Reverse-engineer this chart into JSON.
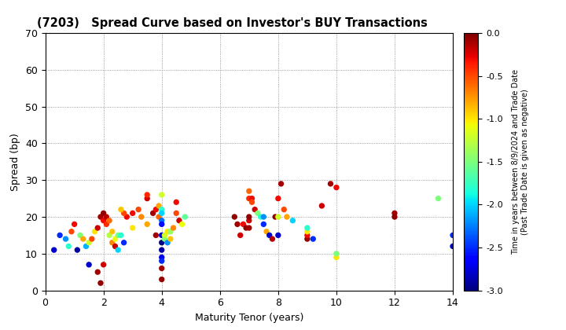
{
  "title": "(7203)   Spread Curve based on Investor's BUY Transactions",
  "xlabel": "Maturity Tenor (years)",
  "ylabel": "Spread (bp)",
  "colorbar_label": "Time in years between 8/9/2024 and Trade Date\n(Past Trade Date is given as negative)",
  "xlim": [
    0,
    14
  ],
  "ylim": [
    0,
    70
  ],
  "xticks": [
    0,
    2,
    4,
    6,
    8,
    10,
    12,
    14
  ],
  "yticks": [
    0,
    10,
    20,
    30,
    40,
    50,
    60,
    70
  ],
  "cmap_min": -3.0,
  "cmap_max": 0.0,
  "points": [
    [
      0.3,
      11,
      -2.8
    ],
    [
      0.5,
      15,
      -2.5
    ],
    [
      0.7,
      14,
      -2.2
    ],
    [
      0.8,
      12,
      -1.8
    ],
    [
      0.9,
      16,
      -0.5
    ],
    [
      1.0,
      18,
      -0.3
    ],
    [
      1.1,
      11,
      -2.9
    ],
    [
      1.2,
      15,
      -1.5
    ],
    [
      1.3,
      14,
      -0.8
    ],
    [
      1.4,
      12,
      -2.1
    ],
    [
      1.5,
      13,
      -1.2
    ],
    [
      1.6,
      14,
      -0.5
    ],
    [
      1.7,
      16,
      -1.0
    ],
    [
      1.8,
      17,
      -0.2
    ],
    [
      1.9,
      20,
      -0.1
    ],
    [
      2.0,
      21,
      -0.05
    ],
    [
      2.0,
      19,
      -0.3
    ],
    [
      2.1,
      18,
      -0.4
    ],
    [
      2.1,
      20,
      -0.15
    ],
    [
      2.2,
      19,
      -0.6
    ],
    [
      2.2,
      15,
      -1.3
    ],
    [
      2.3,
      13,
      -0.7
    ],
    [
      2.3,
      16,
      -0.9
    ],
    [
      2.4,
      12,
      -0.2
    ],
    [
      2.4,
      14,
      -1.1
    ],
    [
      2.5,
      15,
      -1.5
    ],
    [
      2.5,
      11,
      -2.0
    ],
    [
      1.8,
      5,
      -0.1
    ],
    [
      1.9,
      2,
      -0.05
    ],
    [
      2.0,
      7,
      -0.2
    ],
    [
      1.5,
      7,
      -2.8
    ],
    [
      3.0,
      21,
      -0.3
    ],
    [
      3.2,
      22,
      -0.5
    ],
    [
      3.5,
      25,
      -0.2
    ],
    [
      3.5,
      26,
      -0.4
    ],
    [
      3.7,
      21,
      -0.1
    ],
    [
      3.8,
      22,
      -0.3
    ],
    [
      3.9,
      20,
      -0.6
    ],
    [
      3.9,
      23,
      -0.8
    ],
    [
      4.0,
      26,
      -1.2
    ],
    [
      4.0,
      22,
      -1.8
    ],
    [
      4.0,
      21,
      -2.0
    ],
    [
      4.0,
      19,
      -2.3
    ],
    [
      4.0,
      18,
      -2.6
    ],
    [
      4.0,
      15,
      -2.8
    ],
    [
      4.0,
      13,
      -3.0
    ],
    [
      4.0,
      11,
      -2.9
    ],
    [
      4.0,
      9,
      -2.7
    ],
    [
      4.0,
      8,
      -2.5
    ],
    [
      4.0,
      6,
      -0.1
    ],
    [
      4.0,
      3,
      -0.05
    ],
    [
      4.1,
      14,
      -1.5
    ],
    [
      4.1,
      15,
      -1.2
    ],
    [
      4.2,
      16,
      -1.0
    ],
    [
      4.2,
      13,
      -2.2
    ],
    [
      4.3,
      14,
      -0.9
    ],
    [
      4.3,
      16,
      -1.4
    ],
    [
      4.4,
      17,
      -0.7
    ],
    [
      4.5,
      24,
      -0.3
    ],
    [
      4.5,
      21,
      -0.5
    ],
    [
      4.6,
      19,
      -0.2
    ],
    [
      4.7,
      18,
      -1.1
    ],
    [
      4.8,
      20,
      -1.6
    ],
    [
      3.8,
      15,
      -0.1
    ],
    [
      3.5,
      18,
      -0.8
    ],
    [
      3.3,
      20,
      -0.7
    ],
    [
      3.0,
      17,
      -1.0
    ],
    [
      2.8,
      20,
      -0.3
    ],
    [
      2.7,
      21,
      -0.5
    ],
    [
      2.6,
      22,
      -0.9
    ],
    [
      2.6,
      15,
      -1.8
    ],
    [
      2.7,
      13,
      -2.5
    ],
    [
      6.5,
      20,
      -0.05
    ],
    [
      6.6,
      18,
      -0.1
    ],
    [
      6.7,
      15,
      -0.2
    ],
    [
      6.8,
      18,
      -0.3
    ],
    [
      6.9,
      17,
      -0.05
    ],
    [
      7.0,
      17,
      -0.1
    ],
    [
      7.0,
      19,
      -0.2
    ],
    [
      7.0,
      20,
      -0.05
    ],
    [
      7.0,
      25,
      -0.4
    ],
    [
      7.0,
      27,
      -0.6
    ],
    [
      7.1,
      25,
      -0.3
    ],
    [
      7.1,
      24,
      -0.5
    ],
    [
      7.2,
      22,
      -0.2
    ],
    [
      7.3,
      21,
      -1.5
    ],
    [
      7.4,
      20,
      -1.8
    ],
    [
      7.5,
      20,
      -2.2
    ],
    [
      7.5,
      18,
      -2.5
    ],
    [
      7.6,
      16,
      -0.8
    ],
    [
      7.7,
      15,
      -2.8
    ],
    [
      7.8,
      14,
      -0.15
    ],
    [
      7.9,
      20,
      -0.05
    ],
    [
      8.0,
      25,
      -0.3
    ],
    [
      8.0,
      20,
      -1.2
    ],
    [
      8.0,
      15,
      -2.8
    ],
    [
      8.1,
      29,
      -0.1
    ],
    [
      8.2,
      22,
      -0.5
    ],
    [
      8.3,
      20,
      -0.8
    ],
    [
      8.5,
      19,
      -2.0
    ],
    [
      9.0,
      14,
      -0.05
    ],
    [
      9.0,
      15,
      -0.3
    ],
    [
      9.0,
      16,
      -1.0
    ],
    [
      9.0,
      17,
      -1.8
    ],
    [
      9.2,
      14,
      -2.5
    ],
    [
      9.5,
      23,
      -0.2
    ],
    [
      9.8,
      29,
      -0.1
    ],
    [
      10.0,
      28,
      -0.3
    ],
    [
      10.0,
      9,
      -1.0
    ],
    [
      10.0,
      10,
      -1.5
    ],
    [
      12.0,
      21,
      -0.1
    ],
    [
      12.0,
      20,
      -0.05
    ],
    [
      13.5,
      25,
      -1.5
    ],
    [
      14.0,
      15,
      -2.5
    ],
    [
      14.0,
      12,
      -2.8
    ],
    [
      14.2,
      11,
      -3.0
    ]
  ]
}
